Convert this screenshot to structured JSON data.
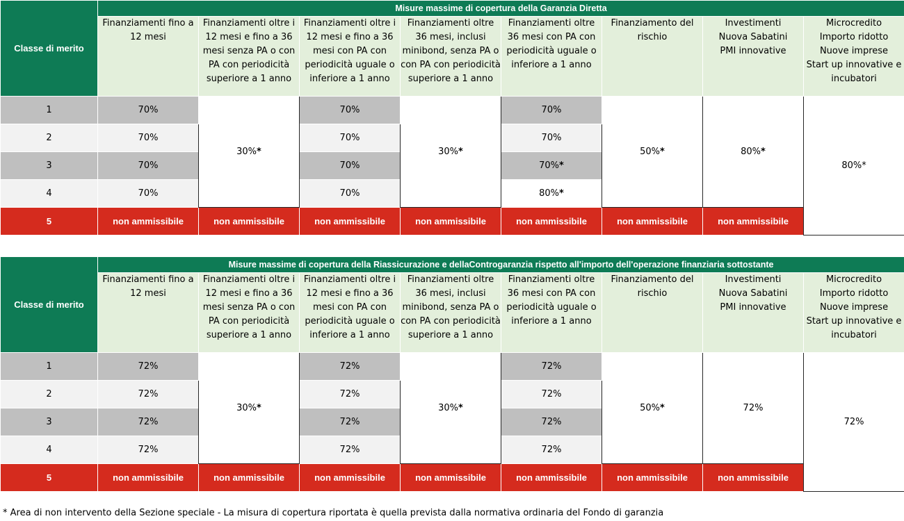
{
  "table1": {
    "title": "Misure massime di copertura della Garanzia Diretta",
    "merit_label": "Classe di merito",
    "columns": [
      "Finanziamenti fino a 12 mesi",
      "Finanziamenti oltre i 12 mesi e fino a 36 mesi senza PA o con PA con periodicità superiore a 1 anno",
      "Finanziamenti oltre i 12 mesi e fino a 36 mesi con PA con periodicità uguale o inferiore a 1 anno",
      "Finanziamenti oltre 36 mesi, inclusi minibond, senza PA o con PA con periodicità superiore a 1 anno",
      "Finanziamenti oltre 36 mesi con PA con periodicità uguale o inferiore a 1 anno",
      "Finanziamento del rischio",
      "Investimenti\nNuova Sabatini\nPMI innovative",
      "Microcredito\nImporto ridotto\nNuove imprese\nStart up innovative e incubatori"
    ],
    "classes": [
      "1",
      "2",
      "3",
      "4",
      "5"
    ],
    "col1": [
      "70%",
      "70%",
      "70%",
      "70%"
    ],
    "col2_merged": "30%",
    "col3": [
      "70%",
      "70%",
      "70%",
      "70%"
    ],
    "col4_merged": "30%",
    "col5": [
      "70%",
      "70%",
      "70%",
      "80%"
    ],
    "col6_merged": "50%",
    "col7_merged": "80%",
    "col8_merged": "80%*",
    "star": "*",
    "not_eligible": "non ammissibile"
  },
  "table2": {
    "title": "Misure massime di copertura  della Riassicurazione e dellaControgaranzia rispetto all'importo dell'operazione finanziaria sottostante",
    "merit_label": "Classe di merito",
    "columns": [
      "Finanziamenti fino a 12 mesi",
      "Finanziamenti oltre i 12 mesi e fino a 36 mesi senza PA o con PA con periodicità superiore a 1 anno",
      "Finanziamenti oltre i 12 mesi e fino a 36 mesi con PA con periodicità uguale o inferiore a 1 anno",
      "Finanziamenti oltre 36 mesi, inclusi minibond, senza PA o con PA con periodicità superiore a 1 anno",
      "Finanziamenti oltre 36 mesi con PA con periodicità uguale o inferiore a 1 anno",
      "Finanziamento del rischio",
      "Investimenti\nNuova Sabatini\nPMI innovative",
      "Microcredito\nImporto ridotto\nNuove imprese\nStart up innovative e incubatori"
    ],
    "classes": [
      "1",
      "2",
      "3",
      "4",
      "5"
    ],
    "col1": [
      "72%",
      "72%",
      "72%",
      "72%"
    ],
    "col2_merged": "30%",
    "col3": [
      "72%",
      "72%",
      "72%",
      "72%"
    ],
    "col4_merged": "30%",
    "col5": [
      "72%",
      "72%",
      "72%",
      "72%"
    ],
    "col6_merged": "50%",
    "col7_merged": "72%",
    "col8_merged": "72%",
    "star": "*",
    "not_eligible": "non ammissibile"
  },
  "footnote": "* Area di non intervento della Sezione speciale - La misura di copertura riportata è quella prevista dalla normativa ordinaria del Fondo di garanzia"
}
